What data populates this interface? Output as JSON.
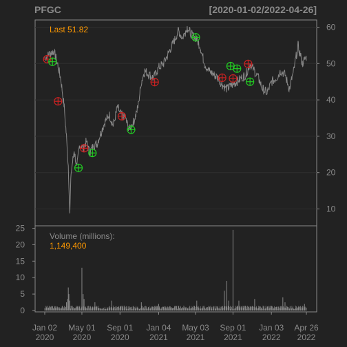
{
  "header": {
    "symbol": "PFGC",
    "range": "[2020-01-02/2022-04-26]"
  },
  "chart_data": [
    {
      "type": "line",
      "panel": "price",
      "title": "PFGC",
      "date_range": "[2020-01-02/2022-04-26]",
      "last_label": "Last 51.82",
      "ylim": [
        6,
        62
      ],
      "y_ticks": [
        10,
        20,
        30,
        40,
        50,
        60
      ],
      "y_tick_labels": [
        "10",
        "20",
        "30",
        "40",
        "50",
        "60"
      ],
      "grid": true,
      "x": [
        "2020-01-02",
        "2020-01-16",
        "2020-01-31",
        "2020-02-14",
        "2020-02-24",
        "2020-03-05",
        "2020-03-12",
        "2020-03-18",
        "2020-03-23",
        "2020-03-27",
        "2020-04-06",
        "2020-04-15",
        "2020-04-24",
        "2020-05-05",
        "2020-05-15",
        "2020-05-26",
        "2020-06-08",
        "2020-06-19",
        "2020-07-01",
        "2020-07-15",
        "2020-07-28",
        "2020-08-10",
        "2020-08-24",
        "2020-09-04",
        "2020-09-17",
        "2020-10-01",
        "2020-10-15",
        "2020-10-29",
        "2020-11-09",
        "2020-11-20",
        "2020-12-04",
        "2020-12-18",
        "2021-01-05",
        "2021-01-20",
        "2021-02-05",
        "2021-02-22",
        "2021-03-09",
        "2021-03-22",
        "2021-04-06",
        "2021-04-20",
        "2021-05-04",
        "2021-05-17",
        "2021-06-01",
        "2021-06-15",
        "2021-06-30",
        "2021-07-15",
        "2021-07-30",
        "2021-08-13",
        "2021-08-27",
        "2021-09-13",
        "2021-09-28",
        "2021-10-12",
        "2021-10-26",
        "2021-11-09",
        "2021-11-22",
        "2021-12-06",
        "2021-12-20",
        "2022-01-04",
        "2022-01-19",
        "2022-02-02",
        "2022-02-16",
        "2022-03-02",
        "2022-03-16",
        "2022-03-30",
        "2022-04-13",
        "2022-04-26"
      ],
      "values": [
        51.5,
        52.5,
        53.5,
        49.5,
        45,
        38,
        30,
        22,
        9,
        20,
        26,
        21.5,
        28,
        26.5,
        28.5,
        25.5,
        27.5,
        28,
        31,
        34,
        36,
        33,
        38,
        36,
        35,
        32,
        34,
        38,
        45,
        48,
        47,
        46,
        49,
        50,
        53,
        56,
        59,
        57,
        60,
        58,
        57,
        55,
        50,
        48,
        47,
        46,
        44,
        43,
        44,
        45,
        46,
        47,
        50,
        48,
        46,
        43,
        42,
        45,
        46,
        48,
        47,
        43,
        48,
        55,
        50,
        51.82
      ],
      "points": [
        {
          "x": "2020-01-10",
          "y": 51.2,
          "kind": "sell"
        },
        {
          "x": "2020-01-27",
          "y": 50.5,
          "kind": "buy"
        },
        {
          "x": "2020-02-14",
          "y": 39.6,
          "kind": "sell"
        },
        {
          "x": "2020-04-20",
          "y": 21.3,
          "kind": "buy"
        },
        {
          "x": "2020-05-08",
          "y": 26.7,
          "kind": "sell"
        },
        {
          "x": "2020-06-04",
          "y": 25.4,
          "kind": "buy"
        },
        {
          "x": "2020-09-07",
          "y": 35.5,
          "kind": "sell"
        },
        {
          "x": "2020-10-07",
          "y": 31.8,
          "kind": "buy"
        },
        {
          "x": "2020-12-22",
          "y": 44.9,
          "kind": "sell"
        },
        {
          "x": "2021-05-04",
          "y": 57.2,
          "kind": "buy"
        },
        {
          "x": "2021-07-28",
          "y": 46.1,
          "kind": "sell"
        },
        {
          "x": "2021-08-24",
          "y": 49.3,
          "kind": "buy"
        },
        {
          "x": "2021-09-01",
          "y": 45.9,
          "kind": "sell"
        },
        {
          "x": "2021-09-14",
          "y": 48.6,
          "kind": "buy"
        },
        {
          "x": "2021-10-20",
          "y": 49.9,
          "kind": "sell"
        },
        {
          "x": "2021-10-26",
          "y": 45.0,
          "kind": "buy"
        }
      ],
      "colors": {
        "line": "#888888",
        "buy": "#22cc22",
        "sell": "#cc2222",
        "accent": "#ff9900",
        "frame": "#8a8a8a"
      }
    },
    {
      "type": "bar",
      "panel": "volume",
      "label": "Volume (millions):",
      "last_label": "1,149,400",
      "ylim": [
        0,
        25
      ],
      "y_ticks": [
        0,
        5,
        10,
        15,
        20,
        25
      ],
      "y_tick_labels": [
        "0",
        "5",
        "10",
        "15",
        "20",
        "25"
      ],
      "baseline": 1.0,
      "spikes": [
        {
          "x": "2020-03-12",
          "y": 2.5
        },
        {
          "x": "2020-03-16",
          "y": 3.5
        },
        {
          "x": "2020-03-18",
          "y": 7
        },
        {
          "x": "2020-03-20",
          "y": 5
        },
        {
          "x": "2020-03-23",
          "y": 3
        },
        {
          "x": "2020-05-01",
          "y": 13
        },
        {
          "x": "2020-05-05",
          "y": 5
        },
        {
          "x": "2020-05-08",
          "y": 3.5
        },
        {
          "x": "2020-06-12",
          "y": 2.5
        },
        {
          "x": "2020-08-05",
          "y": 3
        },
        {
          "x": "2020-11-09",
          "y": 2.5
        },
        {
          "x": "2021-01-04",
          "y": 2
        },
        {
          "x": "2021-05-07",
          "y": 3
        },
        {
          "x": "2021-08-04",
          "y": 6
        },
        {
          "x": "2021-08-12",
          "y": 9
        },
        {
          "x": "2021-08-18",
          "y": 3
        },
        {
          "x": "2021-09-01",
          "y": 24.5
        },
        {
          "x": "2021-09-20",
          "y": 3
        },
        {
          "x": "2021-11-10",
          "y": 3.5
        },
        {
          "x": "2022-02-09",
          "y": 4
        },
        {
          "x": "2022-02-16",
          "y": 2.5
        },
        {
          "x": "2022-04-20",
          "y": 2
        }
      ],
      "color": "#888888"
    }
  ],
  "x_axis": {
    "ticks": [
      {
        "x": "2020-01-02",
        "line1": "Jan 02",
        "line2": "2020"
      },
      {
        "x": "2020-05-01",
        "line1": "May 01",
        "line2": "2020"
      },
      {
        "x": "2020-09-01",
        "line1": "Sep 01",
        "line2": "2020"
      },
      {
        "x": "2021-01-04",
        "line1": "Jan 04",
        "line2": "2021"
      },
      {
        "x": "2021-05-03",
        "line1": "May 03",
        "line2": "2021"
      },
      {
        "x": "2021-09-01",
        "line1": "Sep 01",
        "line2": "2021"
      },
      {
        "x": "2022-01-03",
        "line1": "Jan 03",
        "line2": "2022"
      },
      {
        "x": "2022-04-26",
        "line1": "Apr 26",
        "line2": "2022"
      }
    ]
  }
}
